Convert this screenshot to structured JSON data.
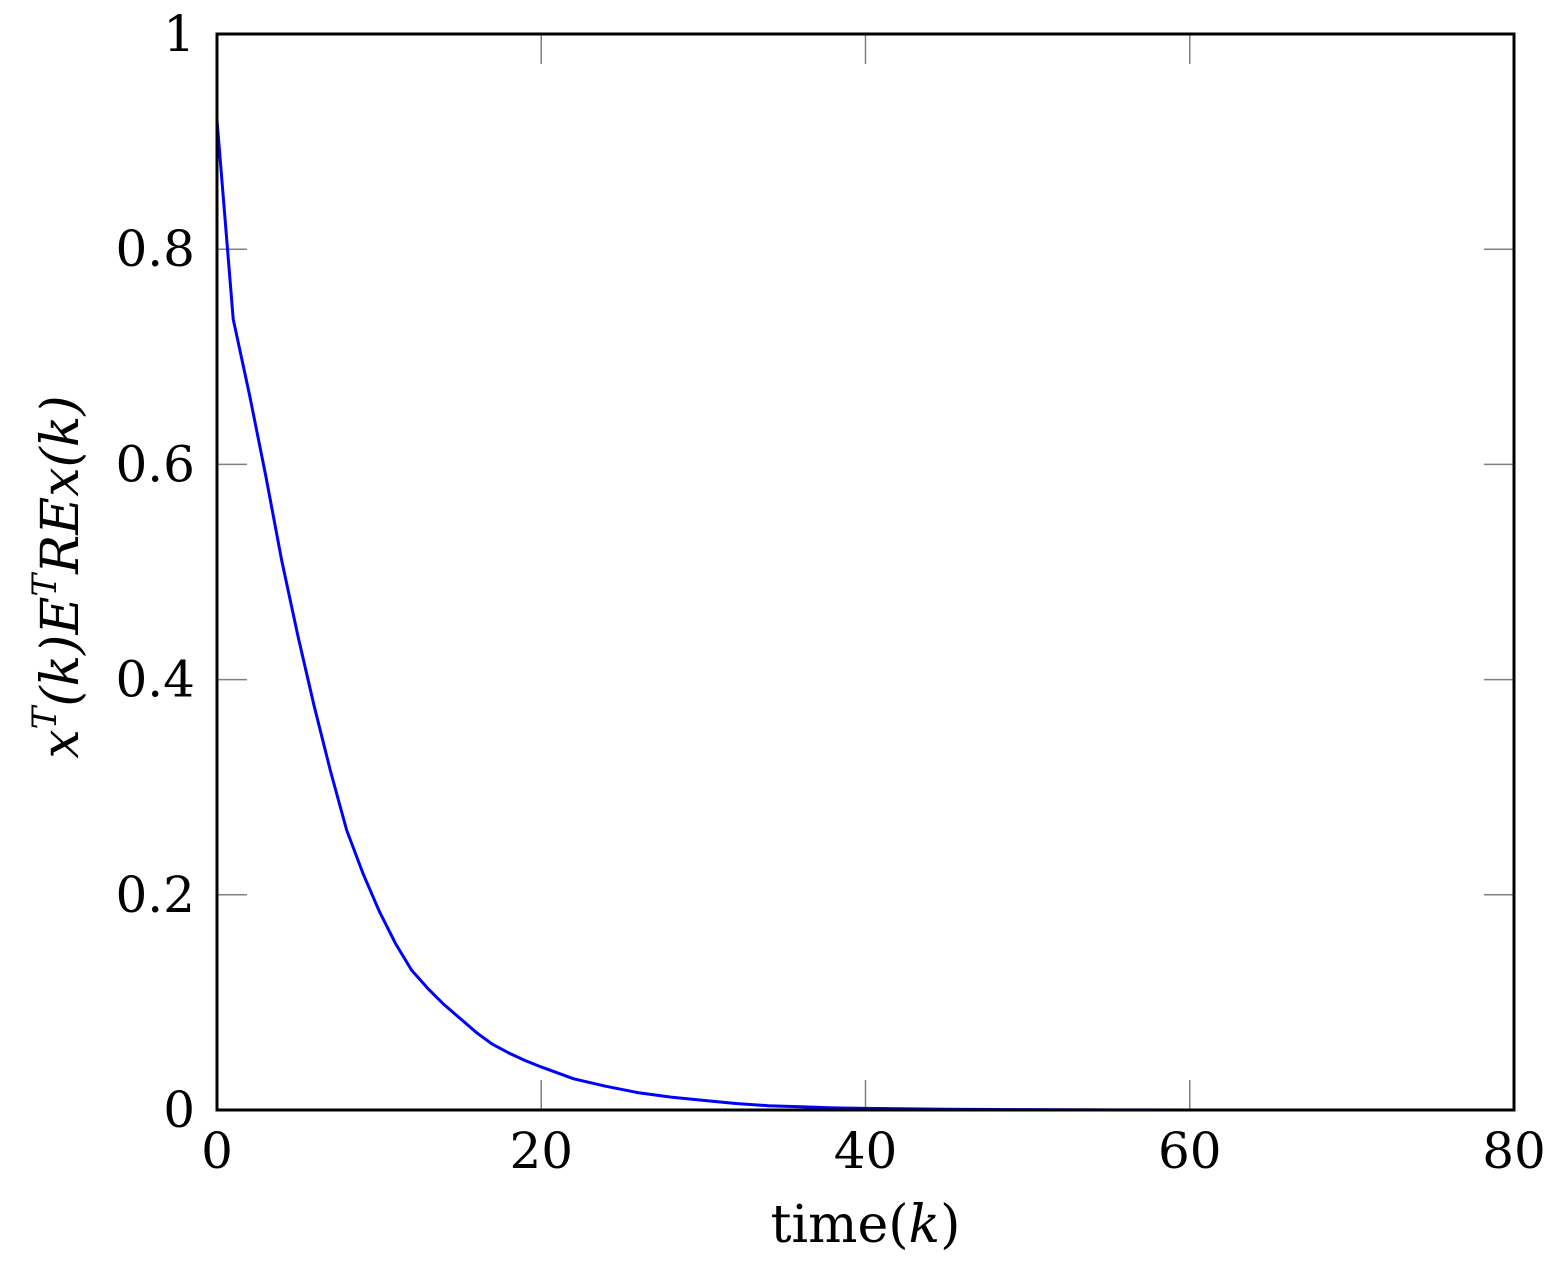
{
  "chart_data": {
    "type": "line",
    "title": "",
    "xlabel": "time(k)",
    "xlabel_parts": {
      "prefix": "time(",
      "var": "k",
      "suffix": ")"
    },
    "ylabel": "x^T(k)E^TREx(k)",
    "ylabel_parts": {
      "x": "x",
      "T1": "T",
      "k1": "(k)",
      "E": "E",
      "T2": "T",
      "RE": "RE",
      "x2": "x",
      "k2": "(k)"
    },
    "xlim": [
      0,
      80
    ],
    "ylim": [
      0,
      1
    ],
    "xticks": [
      0,
      20,
      40,
      60,
      80
    ],
    "xtick_labels": [
      "0",
      "20",
      "40",
      "60",
      "80"
    ],
    "yticks": [
      0,
      0.2,
      0.4,
      0.6,
      0.8,
      1
    ],
    "ytick_labels": [
      "0",
      "0.2",
      "0.4",
      "0.6",
      "0.8",
      "1"
    ],
    "grid": false,
    "legend": "none",
    "series": [
      {
        "color": "#0000ff",
        "x": [
          0,
          1,
          2,
          3,
          4,
          5,
          6,
          7,
          8,
          9,
          10,
          11,
          12,
          13,
          14,
          15,
          16,
          17,
          18,
          19,
          20,
          22,
          24,
          26,
          28,
          30,
          32,
          34,
          36,
          38,
          40,
          45,
          50,
          55,
          60,
          65,
          70,
          75,
          80
        ],
        "y": [
          0.92,
          0.735,
          0.665,
          0.59,
          0.51,
          0.44,
          0.375,
          0.315,
          0.26,
          0.22,
          0.185,
          0.155,
          0.13,
          0.113,
          0.098,
          0.085,
          0.072,
          0.061,
          0.053,
          0.046,
          0.04,
          0.029,
          0.022,
          0.016,
          0.012,
          0.009,
          0.006,
          0.004,
          0.003,
          0.002,
          0.0015,
          0.0007,
          0.0003,
          0.0001,
          5e-05,
          2e-05,
          1e-05,
          0.0,
          0.0
        ]
      }
    ],
    "colors": {
      "axis": "#000000",
      "tick": "#808080",
      "line": "#0000ff"
    }
  }
}
